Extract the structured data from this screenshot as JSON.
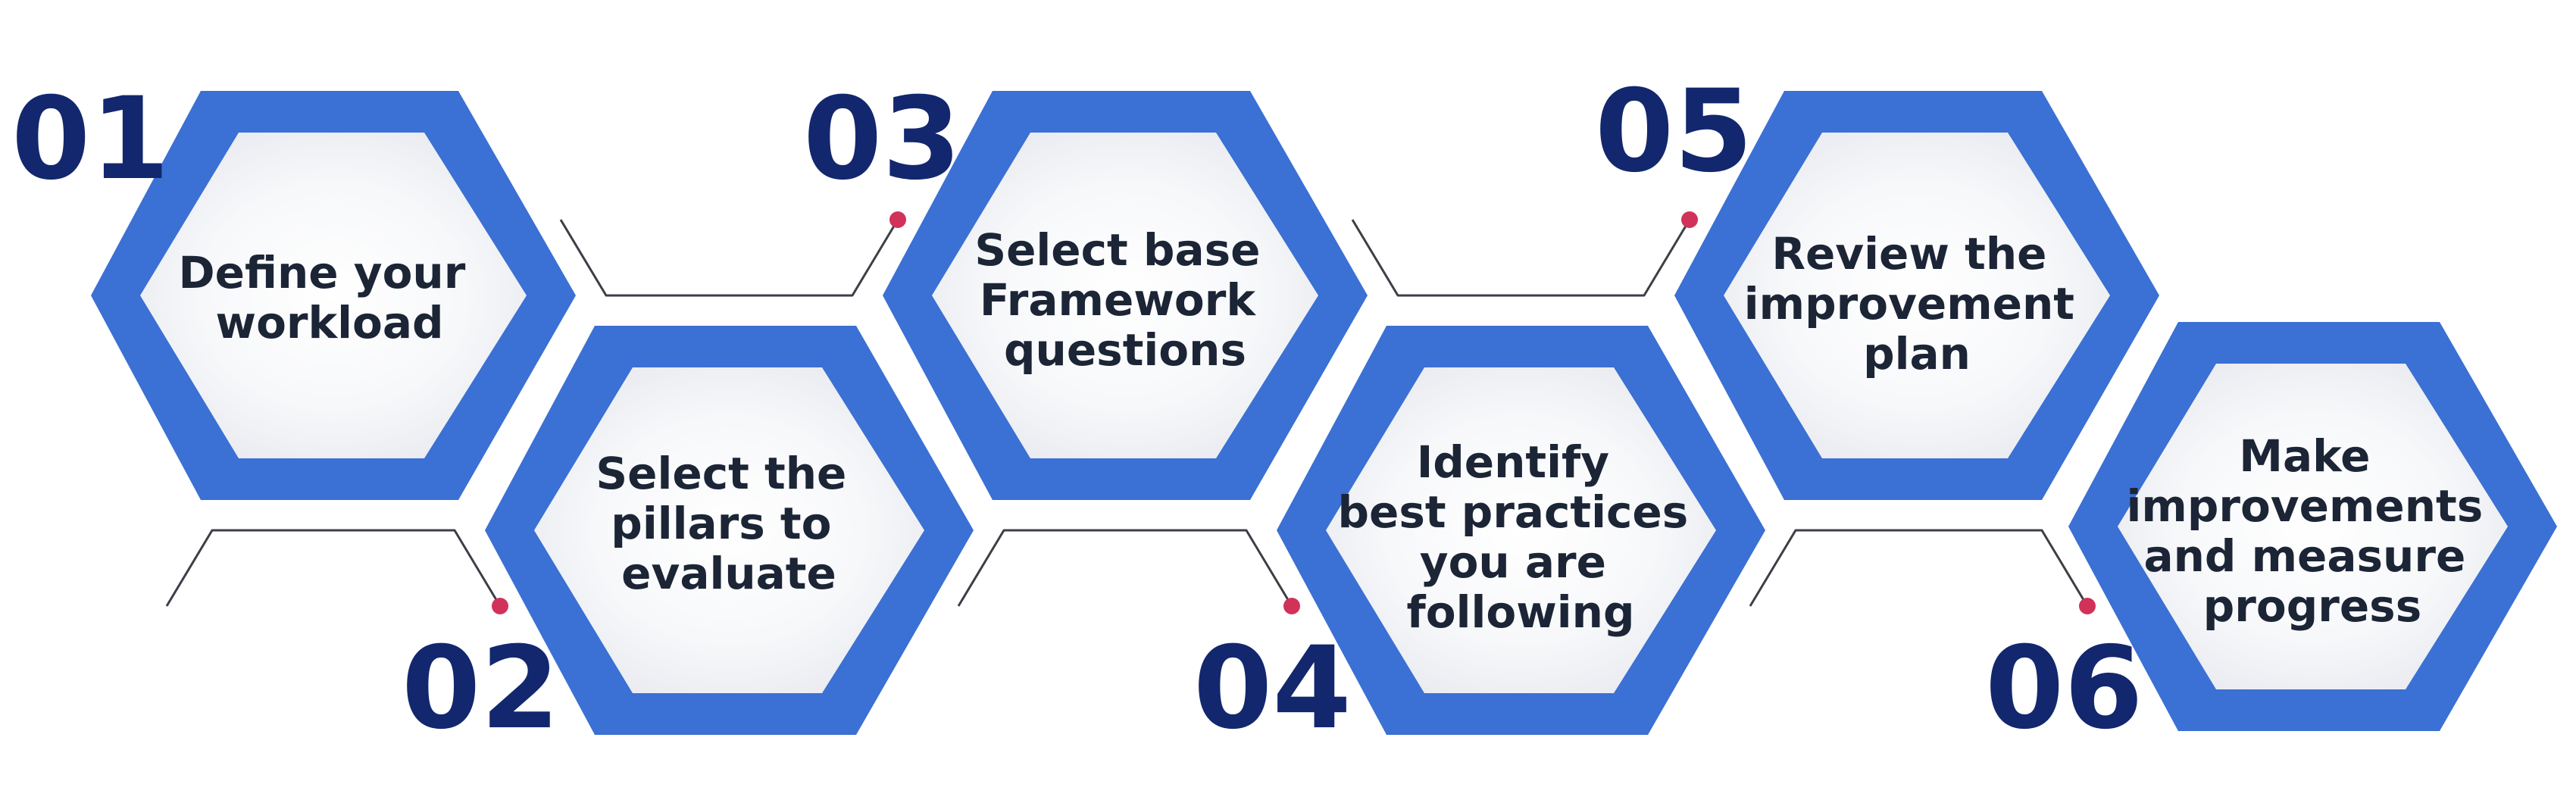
{
  "colors": {
    "hex_border": "#3b70d4",
    "hex_fill_center": "#ffffff",
    "hex_fill_edge": "#e6e8ee",
    "number": "#13276e",
    "label": "#1c2536",
    "connector": "#3c3f46",
    "dot": "#d1325a"
  },
  "steps": [
    {
      "number": "01",
      "lines": [
        "Define your",
        "workload"
      ]
    },
    {
      "number": "02",
      "lines": [
        "Select the",
        "pillars to",
        "evaluate"
      ]
    },
    {
      "number": "03",
      "lines": [
        "Select base",
        "Framework",
        "questions"
      ]
    },
    {
      "number": "04",
      "lines": [
        "Identify",
        "best practices",
        "you are",
        "following"
      ]
    },
    {
      "number": "05",
      "lines": [
        "Review the",
        "improvement",
        "plan"
      ]
    },
    {
      "number": "06",
      "lines": [
        "Make",
        "improvements",
        "and measure",
        "progress"
      ]
    }
  ]
}
